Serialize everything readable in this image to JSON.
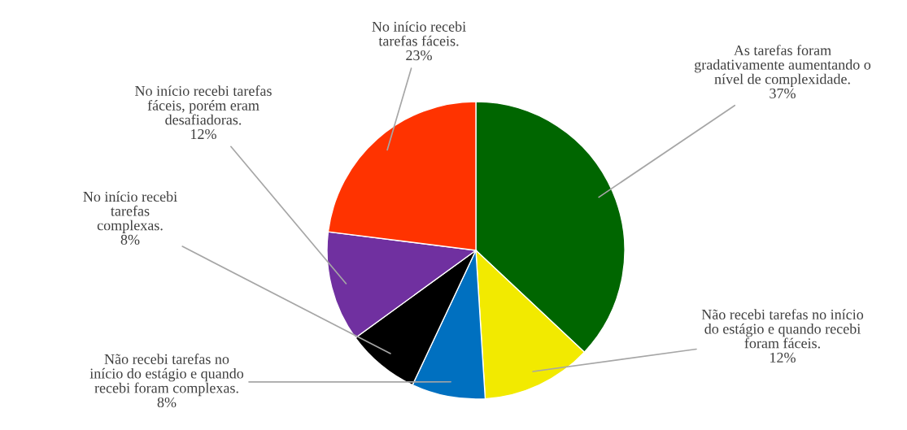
{
  "chart_data": {
    "type": "pie",
    "categories": [
      "As tarefas foram\ngradativamente aumentando o\nnível de complexidade.",
      "Não recebi tarefas no início\ndo estágio e quando recebi\nforam fáceis.",
      "Não recebi tarefas no\ninício do estágio e quando\nrecebi foram complexas.",
      "No início recebi\ntarefas\ncomplexas.",
      "No início recebi tarefas\nfáceis, porém eram\ndesafiadoras.",
      "No início recebi\ntarefas fáceis."
    ],
    "values": [
      37,
      12,
      8,
      8,
      12,
      23
    ],
    "value_labels": [
      "37%",
      "12%",
      "8%",
      "8%",
      "12%",
      "23%"
    ],
    "colors": [
      "#006600",
      "#f2ea00",
      "#0070c0",
      "#000000",
      "#7030a0",
      "#ff3300"
    ],
    "legend": false
  }
}
